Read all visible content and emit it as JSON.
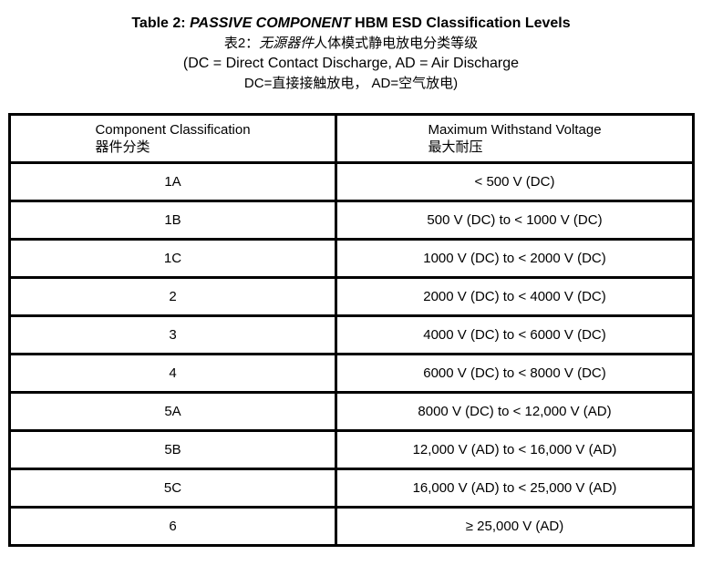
{
  "title": {
    "line1_prefix": "Table 2: ",
    "line1_italic": "PASSIVE COMPONENT",
    "line1_suffix": " HBM ESD Classification Levels",
    "line2_prefix": "表2：",
    "line2_italic": "无源器件",
    "line2_suffix": "人体模式静电放电分类等级",
    "line3": "(DC = Direct Contact Discharge, AD = Air Discharge",
    "line4": "DC=直接接触放电， AD=空气放电)"
  },
  "table": {
    "header": {
      "col1_en": "Component Classification",
      "col1_cn": "器件分类",
      "col2_en": "Maximum Withstand Voltage",
      "col2_cn": "最大耐压"
    },
    "rows": [
      {
        "classification": "1A",
        "voltage": "< 500 V (DC)"
      },
      {
        "classification": "1B",
        "voltage": "500 V (DC) to < 1000 V (DC)"
      },
      {
        "classification": "1C",
        "voltage": "1000 V (DC) to < 2000 V (DC)"
      },
      {
        "classification": "2",
        "voltage": "2000 V (DC) to < 4000 V (DC)"
      },
      {
        "classification": "3",
        "voltage": "4000 V (DC) to < 6000 V (DC)"
      },
      {
        "classification": "4",
        "voltage": "6000 V (DC) to < 8000 V (DC)"
      },
      {
        "classification": "5A",
        "voltage": "8000 V (DC) to < 12,000 V (AD)"
      },
      {
        "classification": "5B",
        "voltage": "12,000 V (AD) to < 16,000 V (AD)"
      },
      {
        "classification": "5C",
        "voltage": "16,000 V (AD) to < 25,000 V (AD)"
      },
      {
        "classification": "6",
        "voltage": "≥ 25,000 V (AD)"
      }
    ]
  },
  "colors": {
    "text": "#000000",
    "border": "#000000",
    "background": "#ffffff"
  }
}
